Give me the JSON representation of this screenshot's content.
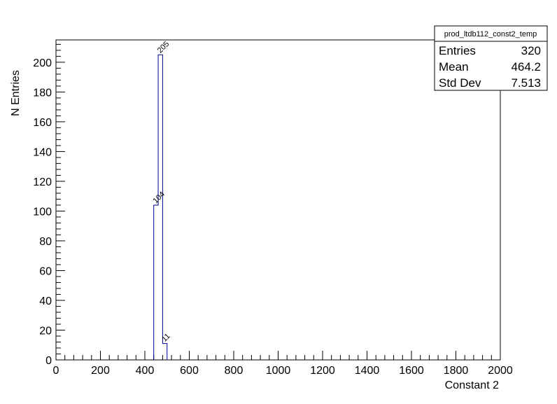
{
  "chart_data": {
    "type": "histogram",
    "title": "",
    "xlabel": "Constant 2",
    "ylabel": "N Entries",
    "xlim": [
      0,
      2000
    ],
    "ylim": [
      0,
      215
    ],
    "x_ticks": [
      0,
      200,
      400,
      600,
      800,
      1000,
      1200,
      1400,
      1600,
      1800,
      2000
    ],
    "y_ticks": [
      0,
      20,
      40,
      60,
      80,
      100,
      120,
      140,
      160,
      180,
      200
    ],
    "grid": false,
    "line_color": "#000099",
    "bins": [
      {
        "low": 440,
        "high": 460,
        "count": 104
      },
      {
        "low": 460,
        "high": 480,
        "count": 205
      },
      {
        "low": 480,
        "high": 500,
        "count": 11
      }
    ],
    "stats_box": {
      "name": "prod_ltdb112_const2_temp",
      "rows": [
        {
          "label": "Entries",
          "value": "320"
        },
        {
          "label": "Mean",
          "value": "464.2"
        },
        {
          "label": "Std Dev",
          "value": "7.513"
        }
      ],
      "placement": "top-right"
    }
  }
}
